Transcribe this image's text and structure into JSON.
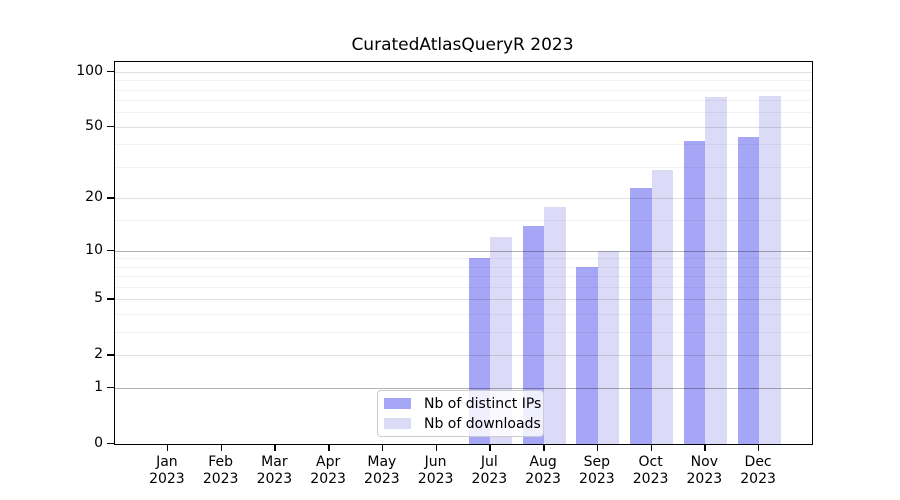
{
  "title": "CuratedAtlasQueryR 2023",
  "chart_data": {
    "type": "bar",
    "title": "CuratedAtlasQueryR 2023",
    "x": [
      {
        "month": "Jan",
        "year": "2023"
      },
      {
        "month": "Feb",
        "year": "2023"
      },
      {
        "month": "Mar",
        "year": "2023"
      },
      {
        "month": "Apr",
        "year": "2023"
      },
      {
        "month": "May",
        "year": "2023"
      },
      {
        "month": "Jun",
        "year": "2023"
      },
      {
        "month": "Jul",
        "year": "2023"
      },
      {
        "month": "Aug",
        "year": "2023"
      },
      {
        "month": "Sep",
        "year": "2023"
      },
      {
        "month": "Oct",
        "year": "2023"
      },
      {
        "month": "Nov",
        "year": "2023"
      },
      {
        "month": "Dec",
        "year": "2023"
      }
    ],
    "series": [
      {
        "name": "Nb of distinct IPs",
        "color": "#a6a6f6",
        "values": [
          0,
          0,
          0,
          0,
          0,
          0,
          9,
          14,
          8,
          23,
          42,
          44
        ]
      },
      {
        "name": "Nb of downloads",
        "color": "#dbdbf8",
        "values": [
          0,
          0,
          0,
          0,
          0,
          0,
          12,
          18,
          10,
          29,
          73,
          74
        ]
      }
    ],
    "y_scale": "log1p",
    "ylim": [
      0,
      113
    ],
    "y_ticks": [
      0,
      1,
      2,
      5,
      10,
      20,
      50,
      100
    ],
    "y_minor_ticks": [
      3,
      4,
      6,
      7,
      8,
      9,
      15,
      30,
      40,
      60,
      70,
      80,
      90
    ],
    "y_decade_gridlines": [
      1,
      10
    ],
    "grid": true,
    "legend_position": "lower center"
  }
}
